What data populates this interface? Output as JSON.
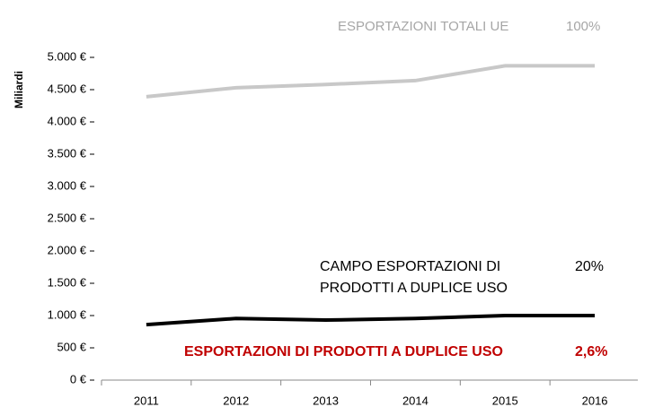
{
  "chart_data": {
    "type": "line",
    "y_label": "Miliardi",
    "categories": [
      "2011",
      "2012",
      "2013",
      "2014",
      "2015",
      "2016"
    ],
    "series": [
      {
        "name": "ESPORTAZIONI TOTALI UE",
        "color": "#c8c8c8",
        "values": [
          4390,
          4530,
          4580,
          4640,
          4870,
          4870
        ]
      },
      {
        "name": "CAMPO ESPORTAZIONI DI\nPRODOTTI A DUPLICE USO",
        "color": "#000000",
        "values": [
          860,
          955,
          930,
          955,
          1000,
          1000
        ]
      }
    ],
    "annotations": [
      {
        "text": "100%",
        "color": "#a6a6a6"
      },
      {
        "text": "20%",
        "color": "#000000"
      },
      {
        "text": "ESPORTAZIONI DI PRODOTTI A DUPLICE USO",
        "color": "#c00000"
      },
      {
        "text": "2,6%",
        "color": "#c00000"
      }
    ],
    "ylim": [
      0,
      5000
    ],
    "yticks": [
      {
        "value": 0,
        "label": "0 €"
      },
      {
        "value": 500,
        "label": "500 €"
      },
      {
        "value": 1000,
        "label": "1.000 €"
      },
      {
        "value": 1500,
        "label": "1.500 €"
      },
      {
        "value": 2000,
        "label": "2.000 €"
      },
      {
        "value": 2500,
        "label": "2.500 €"
      },
      {
        "value": 3000,
        "label": "3.000 €"
      },
      {
        "value": 3500,
        "label": "3.500 €"
      },
      {
        "value": 4000,
        "label": "4.000 €"
      },
      {
        "value": 4500,
        "label": "4.500 €"
      },
      {
        "value": 5000,
        "label": "5.000 €"
      }
    ],
    "grid": false
  }
}
